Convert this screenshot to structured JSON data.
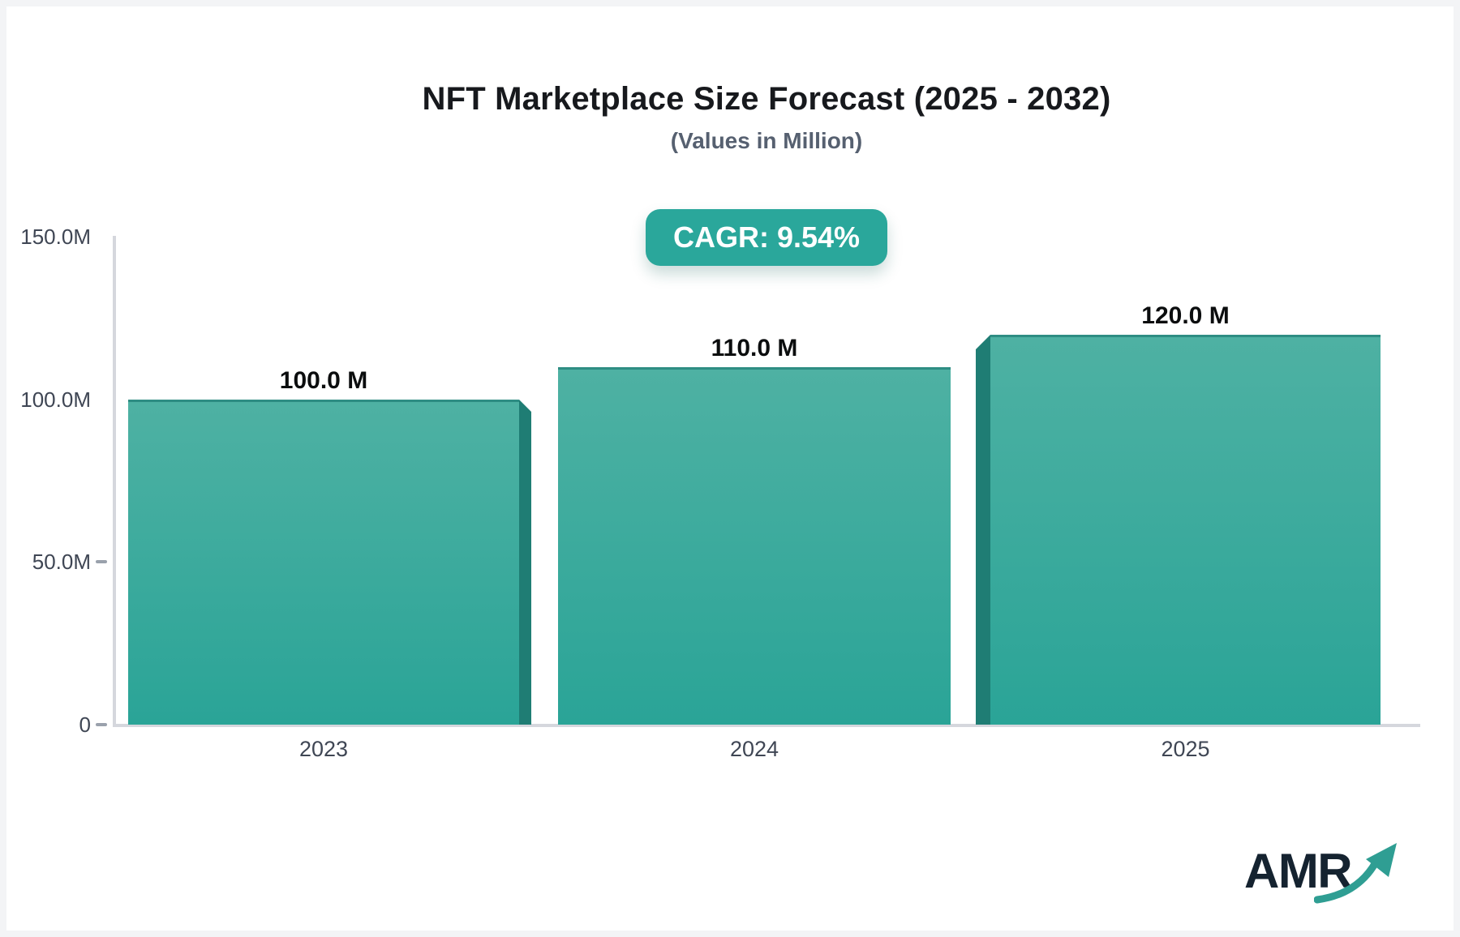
{
  "header": {
    "title": "NFT Marketplace Size Forecast (2025 - 2032)",
    "subtitle": "(Values in Million)",
    "cagr_badge": "CAGR: 9.54%"
  },
  "chart_data": {
    "type": "bar",
    "title": "NFT Marketplace Size Forecast (2025 - 2032)",
    "subtitle": "(Values in Million)",
    "annotation": "CAGR: 9.54%",
    "categories": [
      "2023",
      "2024",
      "2025"
    ],
    "values": [
      100,
      110,
      120
    ],
    "value_labels": [
      "100.0 M",
      "110.0 M",
      "120.0 M"
    ],
    "unit": "Million",
    "xlabel": "",
    "ylabel": "",
    "ylim": [
      0,
      150
    ],
    "yticks": [
      "150.0M",
      "100.0M",
      "50.0M",
      "0"
    ],
    "ytick_values": [
      150,
      100,
      50,
      0
    ],
    "grid": false,
    "legend": false
  },
  "colors": {
    "accent_teal": "#2aa79b",
    "bar_gradient_top": "#4eb1a3",
    "bar_gradient_bottom": "#2aa497",
    "bar_top_edge": "#2e8d83",
    "bar_side_3d": "#1f7d74",
    "axis_line": "#d5d7dd",
    "tick_text": "#3f4654",
    "title_text": "#17191d",
    "subtitle_text": "#566070",
    "logo_navy": "#152330",
    "logo_teal": "#2f9e93"
  },
  "logo": {
    "text": "AMR"
  }
}
